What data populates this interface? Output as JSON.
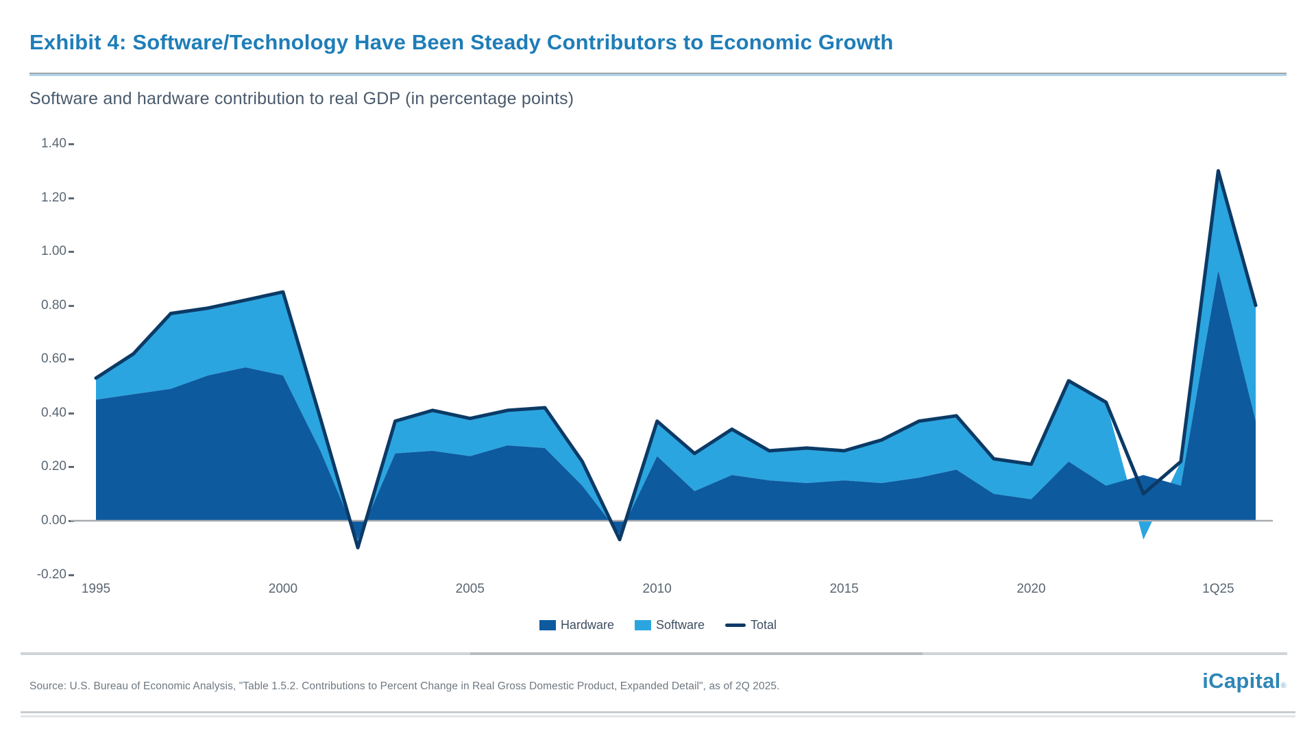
{
  "header": {
    "title": "Exhibit 4: Software/Technology Have Been Steady Contributors to Economic Growth",
    "subtitle": "Software and hardware contribution to real GDP (in percentage points)"
  },
  "legend": {
    "hardware_label": "Hardware",
    "software_label": "Software",
    "total_label": "Total"
  },
  "footer": {
    "source": "Source: U.S. Bureau of Economic Analysis, \"Table 1.5.2. Contributions to Percent Change in Real Gross Domestic Product, Expanded Detail\", as of 2Q 2025.",
    "logo_text": "iCapital",
    "logo_mark": "®"
  },
  "colors": {
    "title_blue": "#1E7DB8",
    "hardware_fill": "#0D5A9F",
    "software_fill": "#2BA5DF",
    "total_line": "#0C3A66",
    "axis_text": "#5A6672",
    "baseline": "#A6A9AD",
    "logo_blue": "#2E86B7"
  },
  "chart_data": {
    "type": "area",
    "stacked": true,
    "title": "Software and hardware contribution to real GDP (in percentage points)",
    "xlabel": "",
    "ylabel": "percentage points",
    "ylim": [
      -0.2,
      1.4
    ],
    "grid": false,
    "legend_position": "bottom",
    "y_ticks": [
      "1.40",
      "1.20",
      "1.00",
      "0.80",
      "0.60",
      "0.40",
      "0.20",
      "0.00",
      "-0.20"
    ],
    "x_tick_labels": [
      "1995",
      "2000",
      "2005",
      "2010",
      "2015",
      "2020",
      "1Q25"
    ],
    "x_tick_indices": [
      0,
      5,
      10,
      15,
      20,
      25,
      30
    ],
    "categories": [
      "1995",
      "1996",
      "1997",
      "1998",
      "1999",
      "2000",
      "2001",
      "2002",
      "2003",
      "2004",
      "2005",
      "2006",
      "2007",
      "2008",
      "2009",
      "2010",
      "2011",
      "2012",
      "2013",
      "2014",
      "2015",
      "2016",
      "2017",
      "2018",
      "2019",
      "2020",
      "2021",
      "2022",
      "2023",
      "2024",
      "1Q25",
      "2Q25"
    ],
    "series": [
      {
        "name": "Hardware",
        "type": "area",
        "color": "#0D5A9F",
        "values": [
          0.45,
          0.47,
          0.49,
          0.54,
          0.57,
          0.54,
          0.26,
          -0.07,
          0.25,
          0.26,
          0.24,
          0.28,
          0.27,
          0.13,
          -0.05,
          0.24,
          0.11,
          0.17,
          0.15,
          0.14,
          0.15,
          0.14,
          0.16,
          0.19,
          0.1,
          0.08,
          0.22,
          0.13,
          0.17,
          0.13,
          0.93,
          0.37
        ]
      },
      {
        "name": "Software",
        "type": "area",
        "color": "#2BA5DF",
        "values": [
          0.08,
          0.15,
          0.28,
          0.25,
          0.25,
          0.31,
          0.12,
          -0.03,
          0.12,
          0.15,
          0.14,
          0.13,
          0.15,
          0.09,
          -0.02,
          0.13,
          0.14,
          0.17,
          0.11,
          0.13,
          0.11,
          0.16,
          0.21,
          0.2,
          0.13,
          0.13,
          0.3,
          0.31,
          -0.07,
          0.09,
          0.37,
          0.43
        ]
      },
      {
        "name": "Total",
        "type": "line",
        "color": "#0C3A66",
        "values": [
          0.53,
          0.62,
          0.77,
          0.79,
          0.82,
          0.85,
          0.38,
          -0.1,
          0.37,
          0.41,
          0.38,
          0.41,
          0.42,
          0.22,
          -0.07,
          0.37,
          0.25,
          0.34,
          0.26,
          0.27,
          0.26,
          0.3,
          0.37,
          0.39,
          0.23,
          0.21,
          0.52,
          0.44,
          0.1,
          0.22,
          1.3,
          0.8
        ]
      }
    ]
  }
}
